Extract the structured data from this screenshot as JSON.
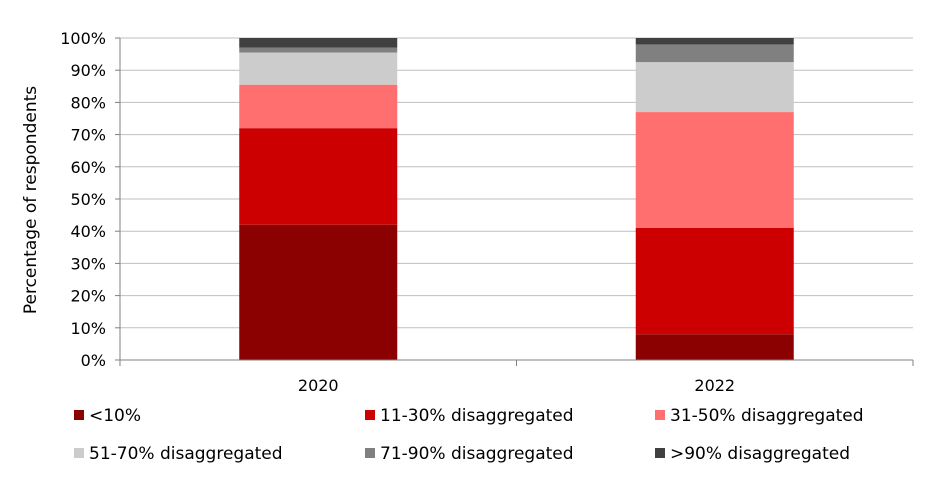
{
  "chart_data": {
    "type": "bar",
    "stacked": true,
    "ylabel": "Percentage of respondents",
    "xlabel": "",
    "ylim": [
      0,
      100
    ],
    "y_ticks": [
      "0%",
      "10%",
      "20%",
      "30%",
      "40%",
      "50%",
      "60%",
      "70%",
      "80%",
      "90%",
      "100%"
    ],
    "grid": true,
    "legend_position": "bottom",
    "categories": [
      "2020",
      "2022"
    ],
    "series": [
      {
        "name": "<10%",
        "color": "#8b0000",
        "values": [
          42,
          8
        ]
      },
      {
        "name": "11-30% disaggregated",
        "color": "#cc0000",
        "values": [
          30,
          33
        ]
      },
      {
        "name": "31-50% disaggregated",
        "color": "#ff6f6f",
        "values": [
          13.5,
          36
        ]
      },
      {
        "name": "51-70% disaggregated",
        "color": "#cccccc",
        "values": [
          10,
          15.5
        ]
      },
      {
        "name": "71-90% disaggregated",
        "color": "#808080",
        "values": [
          1.5,
          5.5
        ]
      },
      {
        "name": ">90% disaggregated",
        "color": "#404040",
        "values": [
          3,
          2
        ]
      }
    ]
  }
}
